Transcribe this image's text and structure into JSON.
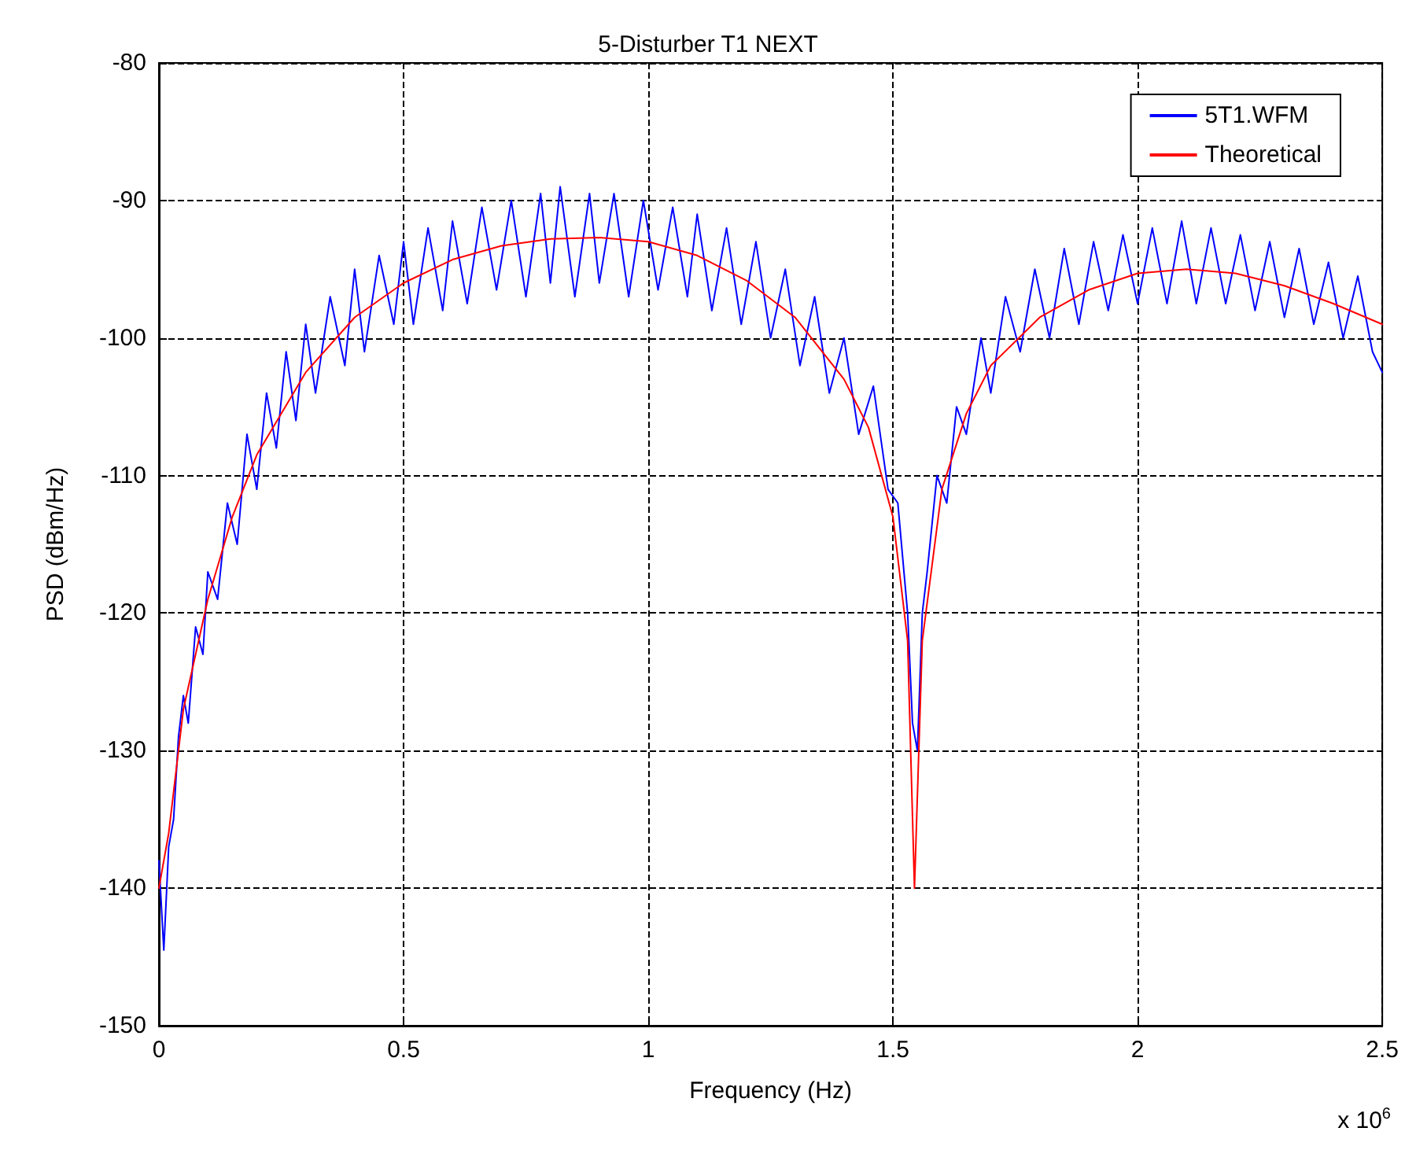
{
  "chart_data": {
    "type": "line",
    "title": "5-Disturber T1 NEXT",
    "xlabel": "Frequency (Hz)",
    "ylabel": "PSD (dBm/Hz)",
    "annotations": [
      "x 10$^{6}$"
    ],
    "xlim": [
      0,
      2.5
    ],
    "xticks": [
      0,
      0.5,
      1,
      1.5,
      2,
      2.5
    ],
    "ylim": [
      -150,
      -80
    ],
    "yticks": [
      -150,
      -140,
      -130,
      -120,
      -110,
      -100,
      -90,
      -80
    ],
    "grid": true,
    "legend": "top right",
    "marker": "none",
    "line_style": "solid",
    "series": [
      {
        "name": "5T1.WFM",
        "color": "#0000ff",
        "x": [
          0,
          0.01,
          0.02,
          0.03,
          0.04,
          0.05,
          0.06,
          0.075,
          0.09,
          0.1,
          0.12,
          0.14,
          0.16,
          0.18,
          0.2,
          0.22,
          0.24,
          0.26,
          0.28,
          0.3,
          0.32,
          0.35,
          0.38,
          0.4,
          0.42,
          0.45,
          0.48,
          0.5,
          0.52,
          0.55,
          0.58,
          0.6,
          0.63,
          0.66,
          0.69,
          0.72,
          0.75,
          0.78,
          0.8,
          0.82,
          0.85,
          0.88,
          0.9,
          0.93,
          0.96,
          0.99,
          1.02,
          1.05,
          1.08,
          1.1,
          1.13,
          1.16,
          1.19,
          1.22,
          1.25,
          1.28,
          1.31,
          1.34,
          1.37,
          1.4,
          1.43,
          1.46,
          1.49,
          1.51,
          1.53,
          1.54,
          1.55,
          1.56,
          1.57,
          1.59,
          1.61,
          1.63,
          1.65,
          1.68,
          1.7,
          1.73,
          1.76,
          1.79,
          1.82,
          1.85,
          1.88,
          1.91,
          1.94,
          1.97,
          2.0,
          2.03,
          2.06,
          2.09,
          2.12,
          2.15,
          2.18,
          2.21,
          2.24,
          2.27,
          2.3,
          2.33,
          2.36,
          2.39,
          2.42,
          2.45,
          2.48,
          2.5
        ],
        "values": [
          -138,
          -144.5,
          -137,
          -135,
          -129,
          -126,
          -128,
          -121,
          -123,
          -117,
          -119,
          -112,
          -115,
          -107,
          -111,
          -104,
          -108,
          -101,
          -106,
          -99,
          -104,
          -97,
          -102,
          -95,
          -101,
          -94,
          -99,
          -93,
          -99,
          -92,
          -98,
          -91.5,
          -97.5,
          -90.5,
          -96.5,
          -90,
          -97,
          -89.5,
          -96,
          -89,
          -97,
          -89.5,
          -96,
          -89.5,
          -97,
          -90,
          -96.5,
          -90.5,
          -97,
          -91,
          -98,
          -92,
          -99,
          -93,
          -100,
          -95,
          -102,
          -97,
          -104,
          -100,
          -107,
          -103.5,
          -111,
          -112,
          -120,
          -128,
          -130,
          -120,
          -117,
          -110,
          -112,
          -105,
          -107,
          -100,
          -104,
          -97,
          -101,
          -95,
          -100,
          -93.5,
          -99,
          -93,
          -98,
          -92.5,
          -97.5,
          -92,
          -97.5,
          -91.5,
          -97.5,
          -92,
          -97.5,
          -92.5,
          -98,
          -93,
          -98.5,
          -93.5,
          -99,
          -94.5,
          -100,
          -95.5,
          -101,
          -102.5
        ]
      },
      {
        "name": "Theoretical",
        "color": "#ff0000",
        "x": [
          0,
          0.02,
          0.05,
          0.1,
          0.15,
          0.2,
          0.3,
          0.4,
          0.5,
          0.6,
          0.7,
          0.8,
          0.9,
          1.0,
          1.1,
          1.2,
          1.3,
          1.4,
          1.45,
          1.5,
          1.53,
          1.544,
          1.56,
          1.6,
          1.65,
          1.7,
          1.8,
          1.9,
          2.0,
          2.1,
          2.2,
          2.3,
          2.4,
          2.5
        ],
        "values": [
          -140,
          -136,
          -127,
          -119,
          -113,
          -108.5,
          -102.5,
          -98.5,
          -96,
          -94.3,
          -93.3,
          -92.8,
          -92.7,
          -93,
          -94,
          -95.8,
          -98.5,
          -103,
          -106.5,
          -113,
          -122,
          -140,
          -122,
          -111,
          -105.5,
          -102,
          -98.5,
          -96.5,
          -95.3,
          -95,
          -95.3,
          -96.2,
          -97.5,
          -99
        ]
      }
    ]
  }
}
